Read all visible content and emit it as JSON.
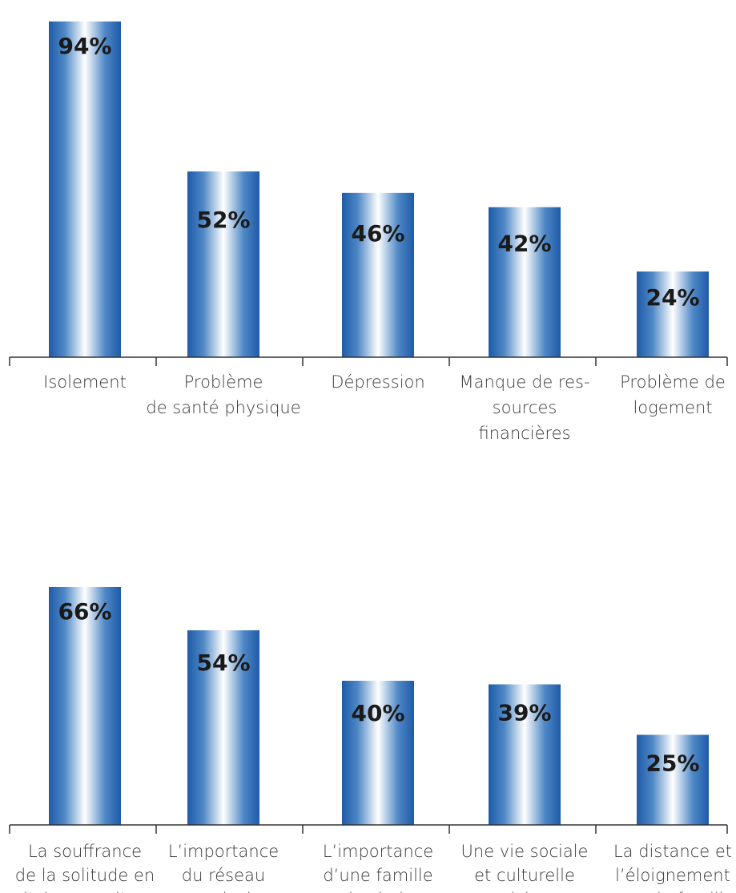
{
  "chart_data": [
    {
      "type": "bar",
      "categories": [
        "Isolement",
        "Problème\nde santé physique",
        "Dépression",
        "Manque de res-\nsources\nfinancières",
        "Problème de\nlogement"
      ],
      "values": [
        94,
        52,
        46,
        42,
        24
      ],
      "value_labels": [
        "94%",
        "52%",
        "46%",
        "42%",
        "24%"
      ],
      "ylim": [
        0,
        100
      ],
      "grid": false,
      "legend": "none"
    },
    {
      "type": "bar",
      "categories": [
        "La souffrance\nde la solitude en\nl’absence d’un\npartenaire",
        "L’importance\ndu réseau\namical",
        "L’importance\nd’une famille\n«de choix»",
        "Une vie sociale\net culturelle\nriche",
        "La distance et\nl’éloignement\navec la famille\nbiologique"
      ],
      "values": [
        66,
        54,
        40,
        39,
        25
      ],
      "value_labels": [
        "66%",
        "54%",
        "40%",
        "39%",
        "25%"
      ],
      "ylim": [
        0,
        100
      ],
      "grid": false,
      "legend": "none"
    }
  ],
  "colors": {
    "bar_dark": "#1e5ba8",
    "bar_light": "#ffffff",
    "axis": "#333333",
    "category_text": "#3a3a3a",
    "value_text": "#1a1a1a"
  }
}
